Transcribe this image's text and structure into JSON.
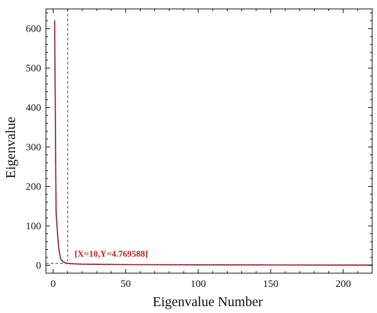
{
  "chart_data": {
    "type": "line",
    "title": "",
    "xlabel": "Eigenvalue Number",
    "ylabel": "Eigenvalue",
    "xlim": [
      -5,
      220
    ],
    "ylim": [
      -20,
      650
    ],
    "xticks": [
      0,
      50,
      100,
      150,
      200
    ],
    "yticks": [
      0,
      100,
      200,
      300,
      400,
      500,
      600
    ],
    "grid": false,
    "legend": "none",
    "series": [
      {
        "color": "#8b1a1a",
        "x": [
          1,
          2,
          3,
          4,
          5,
          6,
          7,
          8,
          9,
          10,
          12,
          15,
          20,
          30,
          50,
          100,
          150,
          200,
          220
        ],
        "y": [
          620,
          135,
          80,
          40,
          18,
          12,
          9,
          7,
          5.5,
          4.769588,
          4.2,
          3.6,
          3.0,
          2.4,
          1.8,
          1.2,
          0.9,
          0.6,
          0.5
        ]
      }
    ],
    "annotation": {
      "label": "[X=10,Y=4.769588]",
      "x": 10,
      "y": 4.769588,
      "color": "#b5241a",
      "guide_color": "#2b2bb5"
    }
  }
}
